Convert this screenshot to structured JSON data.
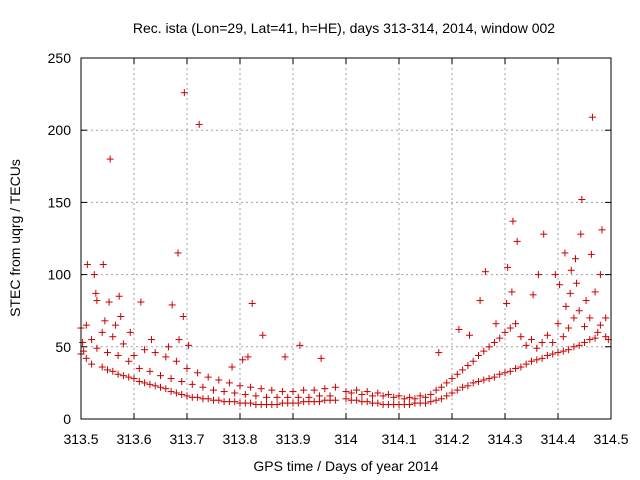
{
  "chart_data": {
    "type": "scatter",
    "title": "Rec. ista (Lon=29, Lat=41, h=HE), days 313-314, 2014, window 002",
    "xlabel": "GPS time / Days of year 2014",
    "ylabel": "STEC from uqrg / TECUs",
    "xlim": [
      313.5,
      314.5
    ],
    "ylim": [
      0,
      250
    ],
    "xticks": [
      313.5,
      313.6,
      313.7,
      313.8,
      313.9,
      314,
      314.1,
      314.2,
      314.3,
      314.4,
      314.5
    ],
    "xtick_labels": [
      "313.5",
      "313.6",
      "313.7",
      "313.8",
      "313.9",
      "314",
      "314.1",
      "314.2",
      "314.3",
      "314.4",
      "314.5"
    ],
    "yticks": [
      0,
      50,
      100,
      150,
      200,
      250
    ],
    "ytick_labels": [
      "0",
      "50",
      "100",
      "150",
      "200",
      "250"
    ],
    "grid": true,
    "marker": "+",
    "color": "#cc0000",
    "points": [
      [
        313.5,
        45
      ],
      [
        313.5,
        63
      ],
      [
        313.503,
        53
      ],
      [
        313.505,
        47
      ],
      [
        313.51,
        42
      ],
      [
        313.51,
        65
      ],
      [
        313.512,
        107
      ],
      [
        313.52,
        38
      ],
      [
        313.52,
        55
      ],
      [
        313.525,
        100
      ],
      [
        313.528,
        87
      ],
      [
        313.53,
        49
      ],
      [
        313.53,
        82
      ],
      [
        313.54,
        36
      ],
      [
        313.54,
        60
      ],
      [
        313.542,
        107
      ],
      [
        313.545,
        68
      ],
      [
        313.55,
        34
      ],
      [
        313.55,
        46
      ],
      [
        313.553,
        81
      ],
      [
        313.555,
        180
      ],
      [
        313.56,
        33
      ],
      [
        313.56,
        57
      ],
      [
        313.565,
        65
      ],
      [
        313.57,
        31
      ],
      [
        313.57,
        44
      ],
      [
        313.572,
        85
      ],
      [
        313.575,
        71
      ],
      [
        313.58,
        30
      ],
      [
        313.58,
        52
      ],
      [
        313.59,
        29
      ],
      [
        313.59,
        40
      ],
      [
        313.593,
        60
      ],
      [
        313.6,
        28
      ],
      [
        313.6,
        44
      ],
      [
        313.61,
        26
      ],
      [
        313.61,
        35
      ],
      [
        313.613,
        81
      ],
      [
        313.62,
        25
      ],
      [
        313.62,
        48
      ],
      [
        313.63,
        24
      ],
      [
        313.63,
        33
      ],
      [
        313.633,
        55
      ],
      [
        313.64,
        23
      ],
      [
        313.64,
        46
      ],
      [
        313.65,
        22
      ],
      [
        313.65,
        30
      ],
      [
        313.66,
        21
      ],
      [
        313.66,
        43
      ],
      [
        313.665,
        50
      ],
      [
        313.67,
        19
      ],
      [
        313.67,
        28
      ],
      [
        313.672,
        79
      ],
      [
        313.68,
        18
      ],
      [
        313.68,
        40
      ],
      [
        313.683,
        115
      ],
      [
        313.685,
        55
      ],
      [
        313.69,
        17
      ],
      [
        313.69,
        26
      ],
      [
        313.693,
        71
      ],
      [
        313.695,
        226
      ],
      [
        313.7,
        16
      ],
      [
        313.7,
        35
      ],
      [
        313.703,
        51
      ],
      [
        313.71,
        15
      ],
      [
        313.71,
        24
      ],
      [
        313.72,
        15
      ],
      [
        313.72,
        32
      ],
      [
        313.723,
        204
      ],
      [
        313.73,
        14
      ],
      [
        313.73,
        22
      ],
      [
        313.74,
        14
      ],
      [
        313.74,
        29
      ],
      [
        313.75,
        13
      ],
      [
        313.75,
        20
      ],
      [
        313.76,
        13
      ],
      [
        313.76,
        27
      ],
      [
        313.77,
        12
      ],
      [
        313.77,
        19
      ],
      [
        313.78,
        12
      ],
      [
        313.78,
        25
      ],
      [
        313.785,
        36
      ],
      [
        313.79,
        12
      ],
      [
        313.79,
        18
      ],
      [
        313.8,
        11
      ],
      [
        313.8,
        23
      ],
      [
        313.805,
        41
      ],
      [
        313.81,
        11
      ],
      [
        313.81,
        17
      ],
      [
        313.815,
        43
      ],
      [
        313.82,
        11
      ],
      [
        313.82,
        22
      ],
      [
        313.823,
        80
      ],
      [
        313.83,
        10
      ],
      [
        313.83,
        16
      ],
      [
        313.84,
        10
      ],
      [
        313.84,
        21
      ],
      [
        313.843,
        58
      ],
      [
        313.85,
        10
      ],
      [
        313.85,
        15
      ],
      [
        313.86,
        10
      ],
      [
        313.86,
        20
      ],
      [
        313.87,
        10
      ],
      [
        313.87,
        15
      ],
      [
        313.88,
        11
      ],
      [
        313.88,
        19
      ],
      [
        313.885,
        43
      ],
      [
        313.89,
        11
      ],
      [
        313.89,
        15
      ],
      [
        313.9,
        11
      ],
      [
        313.9,
        19
      ],
      [
        313.91,
        11
      ],
      [
        313.91,
        15
      ],
      [
        313.913,
        51
      ],
      [
        313.92,
        12
      ],
      [
        313.92,
        20
      ],
      [
        313.93,
        12
      ],
      [
        313.93,
        15
      ],
      [
        313.94,
        12
      ],
      [
        313.94,
        20
      ],
      [
        313.95,
        12
      ],
      [
        313.95,
        16
      ],
      [
        313.953,
        42
      ],
      [
        313.96,
        13
      ],
      [
        313.96,
        21
      ],
      [
        313.97,
        13
      ],
      [
        313.97,
        16
      ],
      [
        313.98,
        13
      ],
      [
        313.98,
        22
      ],
      [
        314.0,
        14
      ],
      [
        314.0,
        19
      ],
      [
        314.01,
        13
      ],
      [
        314.01,
        18
      ],
      [
        314.02,
        13
      ],
      [
        314.02,
        20
      ],
      [
        314.03,
        12
      ],
      [
        314.03,
        17
      ],
      [
        314.04,
        12
      ],
      [
        314.04,
        19
      ],
      [
        314.05,
        11
      ],
      [
        314.05,
        16
      ],
      [
        314.06,
        11
      ],
      [
        314.06,
        18
      ],
      [
        314.07,
        10
      ],
      [
        314.07,
        16
      ],
      [
        314.08,
        10
      ],
      [
        314.08,
        17
      ],
      [
        314.09,
        10
      ],
      [
        314.09,
        15
      ],
      [
        314.1,
        10
      ],
      [
        314.1,
        16
      ],
      [
        314.11,
        10
      ],
      [
        314.11,
        14
      ],
      [
        314.12,
        10
      ],
      [
        314.12,
        15
      ],
      [
        314.13,
        11
      ],
      [
        314.13,
        14
      ],
      [
        314.14,
        11
      ],
      [
        314.14,
        16
      ],
      [
        314.15,
        11
      ],
      [
        314.15,
        15
      ],
      [
        314.16,
        12
      ],
      [
        314.16,
        17
      ],
      [
        314.17,
        13
      ],
      [
        314.17,
        20
      ],
      [
        314.175,
        46
      ],
      [
        314.18,
        14
      ],
      [
        314.18,
        22
      ],
      [
        314.19,
        16
      ],
      [
        314.19,
        25
      ],
      [
        314.2,
        18
      ],
      [
        314.2,
        28
      ],
      [
        314.21,
        20
      ],
      [
        314.21,
        31
      ],
      [
        314.213,
        62
      ],
      [
        314.22,
        22
      ],
      [
        314.22,
        34
      ],
      [
        314.23,
        23
      ],
      [
        314.23,
        37
      ],
      [
        314.233,
        58
      ],
      [
        314.24,
        25
      ],
      [
        314.24,
        40
      ],
      [
        314.25,
        26
      ],
      [
        314.25,
        44
      ],
      [
        314.253,
        82
      ],
      [
        314.26,
        27
      ],
      [
        314.26,
        47
      ],
      [
        314.263,
        102
      ],
      [
        314.27,
        28
      ],
      [
        314.27,
        50
      ],
      [
        314.28,
        29
      ],
      [
        314.28,
        53
      ],
      [
        314.283,
        66
      ],
      [
        314.29,
        31
      ],
      [
        314.29,
        56
      ],
      [
        314.3,
        32
      ],
      [
        314.3,
        60
      ],
      [
        314.303,
        80
      ],
      [
        314.305,
        105
      ],
      [
        314.31,
        33
      ],
      [
        314.31,
        63
      ],
      [
        314.313,
        88
      ],
      [
        314.315,
        137
      ],
      [
        314.32,
        35
      ],
      [
        314.32,
        66
      ],
      [
        314.323,
        123
      ],
      [
        314.33,
        36
      ],
      [
        314.33,
        57
      ],
      [
        314.34,
        38
      ],
      [
        314.34,
        51
      ],
      [
        314.35,
        40
      ],
      [
        314.35,
        55
      ],
      [
        314.353,
        86
      ],
      [
        314.36,
        41
      ],
      [
        314.36,
        49
      ],
      [
        314.363,
        100
      ],
      [
        314.37,
        42
      ],
      [
        314.37,
        53
      ],
      [
        314.373,
        128
      ],
      [
        314.38,
        44
      ],
      [
        314.38,
        58
      ],
      [
        314.39,
        45
      ],
      [
        314.39,
        53
      ],
      [
        314.395,
        100
      ],
      [
        314.4,
        46
      ],
      [
        314.4,
        66
      ],
      [
        314.403,
        93
      ],
      [
        314.41,
        47
      ],
      [
        314.41,
        57
      ],
      [
        314.413,
        115
      ],
      [
        314.415,
        78
      ],
      [
        314.42,
        48
      ],
      [
        314.42,
        63
      ],
      [
        314.423,
        87
      ],
      [
        314.425,
        103
      ],
      [
        314.43,
        50
      ],
      [
        314.43,
        70
      ],
      [
        314.433,
        111
      ],
      [
        314.435,
        94
      ],
      [
        314.44,
        51
      ],
      [
        314.44,
        75
      ],
      [
        314.443,
        128
      ],
      [
        314.445,
        152
      ],
      [
        314.45,
        53
      ],
      [
        314.45,
        64
      ],
      [
        314.453,
        82
      ],
      [
        314.46,
        55
      ],
      [
        314.46,
        70
      ],
      [
        314.463,
        114
      ],
      [
        314.465,
        209
      ],
      [
        314.47,
        56
      ],
      [
        314.47,
        88
      ],
      [
        314.475,
        60
      ],
      [
        314.48,
        65
      ],
      [
        314.48,
        100
      ],
      [
        314.483,
        131
      ],
      [
        314.49,
        57
      ],
      [
        314.49,
        70
      ],
      [
        314.495,
        55
      ]
    ]
  }
}
